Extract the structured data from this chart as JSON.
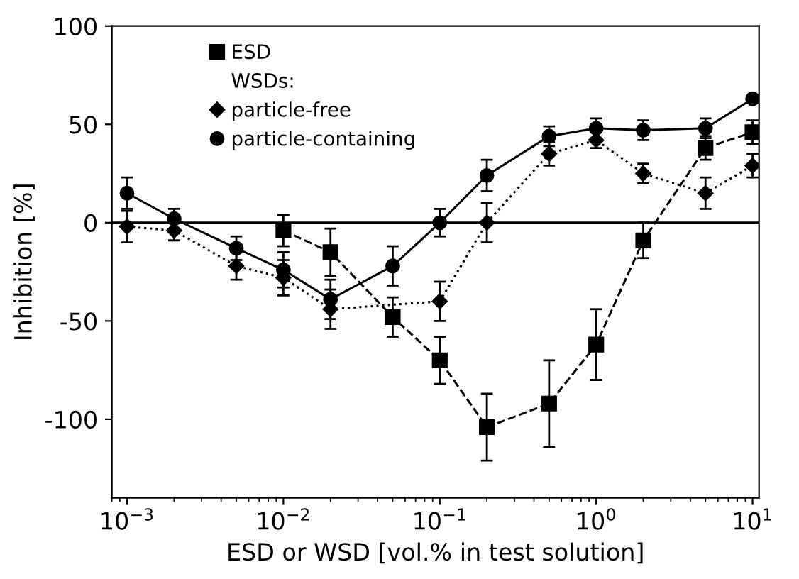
{
  "chart_data": {
    "type": "line",
    "xlabel": "ESD or WSD [vol.% in test solution]",
    "ylabel": "Inhibition [%]",
    "log": "x",
    "xlim": [
      0.0008,
      11
    ],
    "xticks": [
      {
        "value": 0.001,
        "label": "10$^{−3}$"
      },
      {
        "value": 0.01,
        "label": "10$^{−2}$"
      },
      {
        "value": 0.1,
        "label": "10$^{−1}$"
      },
      {
        "value": 1,
        "label": "10$^{0}$"
      },
      {
        "value": 10,
        "label": "10$^{1}$"
      }
    ],
    "ylim": [
      -140,
      100
    ],
    "yticks": [
      -100,
      -50,
      0,
      50,
      100
    ],
    "grid": false,
    "legend": "top left",
    "annotations": [
      "WSDs:"
    ],
    "ref_lines": [
      {
        "axis": "y",
        "value": 0,
        "color": "#000000",
        "line_style": "solid"
      }
    ],
    "x": [
      0.001,
      0.002,
      0.005,
      0.01,
      0.02,
      0.05,
      0.1,
      0.2,
      0.5,
      1,
      2,
      5,
      10
    ],
    "series": [
      {
        "name": "ESD",
        "color": "#000000",
        "marker": "square",
        "line_style": "dashed",
        "values": [
          null,
          null,
          null,
          -4,
          -15,
          -48,
          -70,
          -104,
          -92,
          -62,
          -9,
          38,
          46
        ],
        "errors": [
          null,
          null,
          null,
          8,
          12,
          10,
          12,
          17,
          22,
          18,
          9,
          6,
          6
        ]
      },
      {
        "name": "particle-free",
        "color": "#000000",
        "marker": "diamond",
        "line_style": "dotted",
        "values": [
          -2,
          -4,
          -22,
          -28,
          -44,
          null,
          -40,
          0,
          35,
          42,
          25,
          15,
          29
        ],
        "errors": [
          8,
          5,
          7,
          9,
          10,
          null,
          10,
          10,
          6,
          4,
          5,
          8,
          6
        ]
      },
      {
        "name": "particle-containing",
        "color": "#000000",
        "marker": "circle",
        "line_style": "solid",
        "values": [
          15,
          2,
          -13,
          -24,
          -39,
          -22,
          0,
          24,
          44,
          48,
          47,
          48,
          63
        ],
        "errors": [
          8,
          5,
          6,
          9,
          10,
          10,
          7,
          8,
          5,
          5,
          5,
          5,
          null
        ]
      }
    ]
  }
}
